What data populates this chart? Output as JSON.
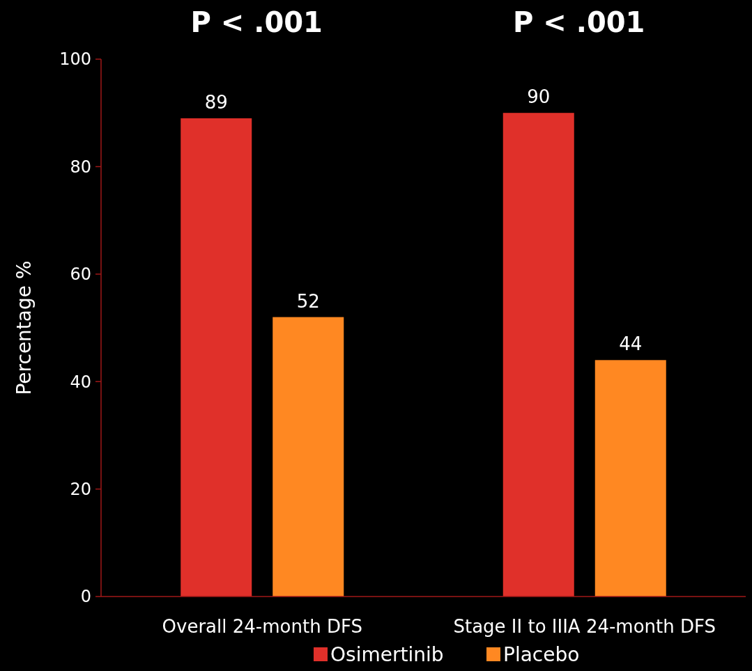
{
  "chart_data": {
    "type": "bar",
    "ylabel": "Percentage %",
    "categories": [
      "Overall 24-month DFS",
      "Stage II to IIIA 24-month DFS"
    ],
    "series": [
      {
        "name": "Osimertinib",
        "color": "#e0302a",
        "values": [
          89,
          90
        ]
      },
      {
        "name": "Placebo",
        "color": "#ff8822",
        "values": [
          52,
          44
        ]
      }
    ],
    "annotations": [
      "P < .001",
      "P < .001"
    ],
    "ylim": [
      0,
      100
    ],
    "yticks": [
      0,
      20,
      40,
      60,
      80,
      100
    ],
    "data_labels": true,
    "grid": false,
    "legend": "bottom"
  }
}
